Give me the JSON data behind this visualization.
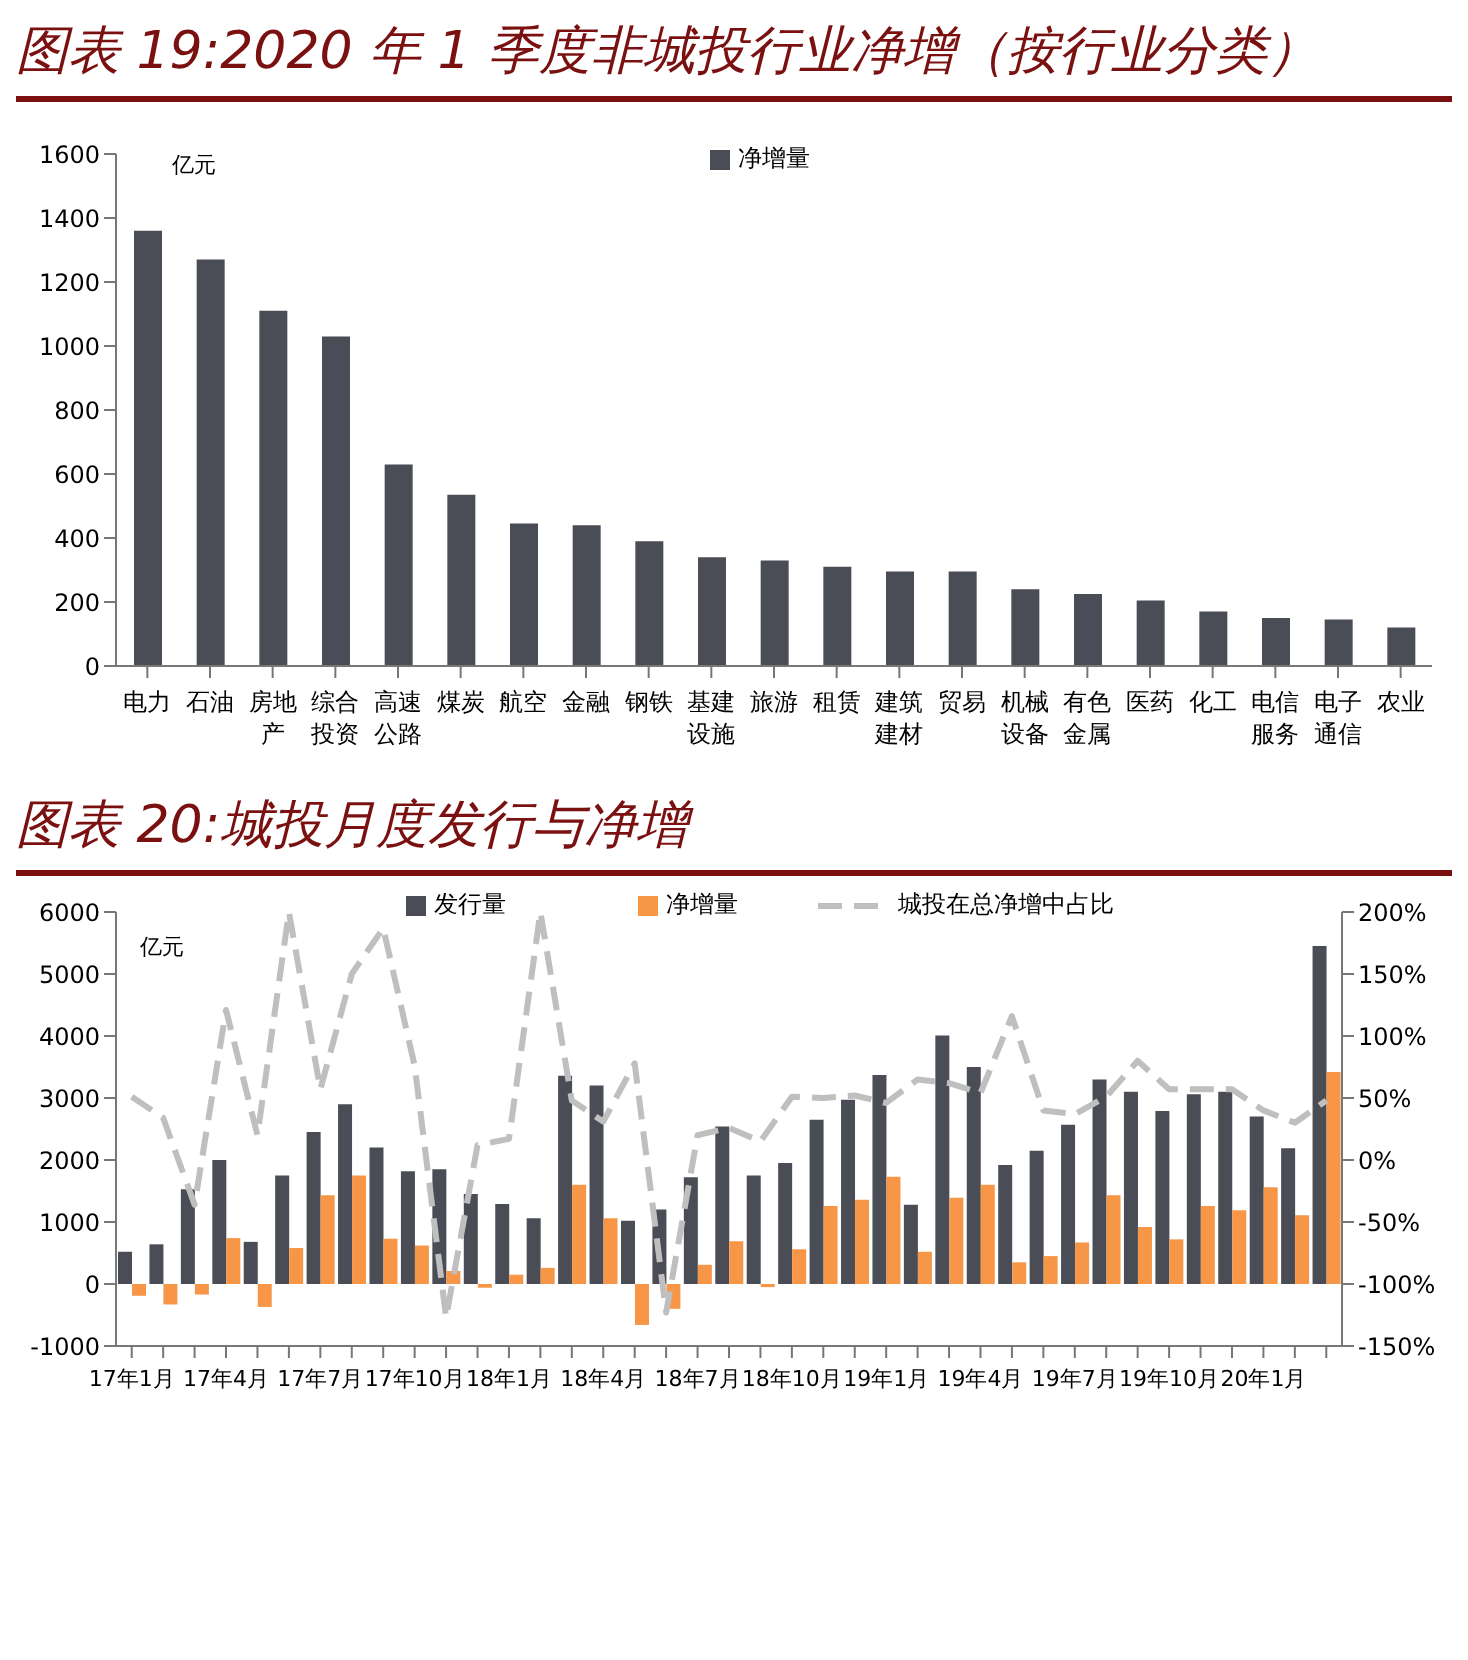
{
  "chart_data": [
    {
      "type": "bar",
      "title": "图表 19:2020 年 1 季度非城投行业净增（按行业分类）",
      "ylabel": "亿元",
      "categories": [
        "电力",
        "石油",
        "房地产",
        "综合投资",
        "高速公路",
        "煤炭",
        "航空",
        "金融",
        "钢铁",
        "基建设施",
        "旅游",
        "租赁",
        "建筑建材",
        "贸易",
        "机械设备",
        "有色金属",
        "医药",
        "化工",
        "电信服务",
        "电子通信",
        "农业"
      ],
      "series": [
        {
          "name": "净增量",
          "color": "#4a4d55",
          "values": [
            1360,
            1270,
            1110,
            1030,
            630,
            535,
            445,
            440,
            390,
            340,
            330,
            310,
            295,
            295,
            240,
            225,
            205,
            170,
            150,
            145,
            120
          ]
        }
      ],
      "ylim": [
        0,
        1600
      ],
      "yticks": [
        0,
        200,
        400,
        600,
        800,
        1000,
        1200,
        1400,
        1600
      ],
      "legend": "top"
    },
    {
      "type": "bar",
      "title": "图表 20:城投月度发行与净增",
      "ylabel": "亿元",
      "categories": [
        "17年1月",
        null,
        null,
        "17年4月",
        null,
        null,
        "17年7月",
        null,
        null,
        "17年10月",
        null,
        null,
        "18年1月",
        null,
        null,
        "18年4月",
        null,
        null,
        "18年7月",
        null,
        null,
        "18年10月",
        null,
        null,
        "19年1月",
        null,
        null,
        "19年4月",
        null,
        null,
        "19年7月",
        null,
        null,
        "19年10月",
        null,
        null,
        "20年1月",
        null,
        null
      ],
      "series": [
        {
          "name": "发行量",
          "color": "#4a4d55",
          "values": [
            520,
            640,
            1530,
            2000,
            680,
            1750,
            2450,
            2900,
            2200,
            1820,
            1850,
            1450,
            1290,
            1060,
            3360,
            3200,
            1020,
            1200,
            1720,
            2540,
            1750,
            1950,
            2650,
            2970,
            3370,
            1280,
            4010,
            3500,
            1920,
            2150,
            2570,
            3300,
            3100,
            2790,
            3060,
            3100,
            2700,
            2190,
            5450
          ]
        },
        {
          "name": "净增量",
          "color": "#f79646",
          "values": [
            -190,
            -330,
            -170,
            740,
            -370,
            580,
            1430,
            1750,
            730,
            620,
            210,
            -60,
            150,
            260,
            1600,
            1060,
            -660,
            -400,
            310,
            690,
            -50,
            560,
            1260,
            1360,
            1730,
            520,
            1390,
            1600,
            350,
            450,
            670,
            1430,
            920,
            720,
            1260,
            1190,
            1560,
            1110,
            3420
          ]
        },
        {
          "name": "城投在总净增中占比",
          "type": "line",
          "axis": "y2",
          "color": "#bfbfbf",
          "line_style": "dashed",
          "marker": "none",
          "values": [
            51,
            34,
            -36,
            121,
            20,
            200,
            57,
            150,
            187,
            76,
            -127,
            12,
            17,
            200,
            48,
            31,
            78,
            -123,
            20,
            26,
            15,
            51,
            50,
            52,
            46,
            65,
            62,
            54,
            116,
            40,
            37,
            51,
            80,
            57,
            57,
            57,
            40,
            30,
            48
          ]
        }
      ],
      "ylim": [
        -1000,
        6000
      ],
      "yticks": [
        -1000,
        0,
        1000,
        2000,
        3000,
        4000,
        5000,
        6000
      ],
      "y2lim": [
        -150,
        200
      ],
      "y2ticks": [
        {
          "value": -150,
          "label": "-150%"
        },
        {
          "value": -100,
          "label": "-100%"
        },
        {
          "value": -50,
          "label": "-50%"
        },
        {
          "value": 0,
          "label": "0%"
        },
        {
          "value": 50,
          "label": "50%"
        },
        {
          "value": 100,
          "label": "100%"
        },
        {
          "value": 150,
          "label": "150%"
        },
        {
          "value": 200,
          "label": "200%"
        }
      ],
      "legend": "top"
    }
  ]
}
